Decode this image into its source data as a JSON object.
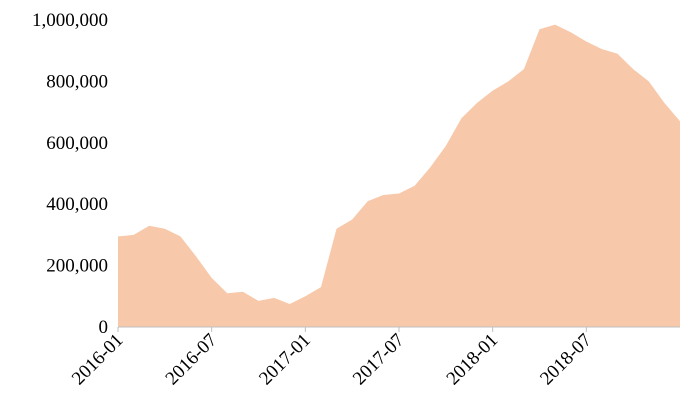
{
  "chart_data": {
    "type": "area",
    "x": [
      "2016-01",
      "2016-02",
      "2016-03",
      "2016-04",
      "2016-05",
      "2016-06",
      "2016-07",
      "2016-08",
      "2016-09",
      "2016-10",
      "2016-11",
      "2016-12",
      "2017-01",
      "2017-02",
      "2017-03",
      "2017-04",
      "2017-05",
      "2017-06",
      "2017-07",
      "2017-08",
      "2017-09",
      "2017-10",
      "2017-11",
      "2017-12",
      "2018-01",
      "2018-02",
      "2018-03",
      "2018-04",
      "2018-05",
      "2018-06",
      "2018-07",
      "2018-08",
      "2018-09",
      "2018-10",
      "2018-11",
      "2018-12",
      "2019-01"
    ],
    "series": [
      {
        "color": "#f7c9aa",
        "values": [
          295000,
          300000,
          330000,
          320000,
          295000,
          230000,
          160000,
          110000,
          115000,
          85000,
          95000,
          75000,
          100000,
          130000,
          320000,
          350000,
          410000,
          430000,
          435000,
          460000,
          520000,
          590000,
          680000,
          730000,
          770000,
          800000,
          840000,
          970000,
          985000,
          960000,
          930000,
          905000,
          890000,
          840000,
          800000,
          730000,
          670000
        ]
      }
    ],
    "xlim": [
      "2016-01",
      "2019-01"
    ],
    "xticks": [
      "2016-01",
      "2016-07",
      "2017-01",
      "2017-07",
      "2018-01",
      "2018-07"
    ],
    "ylim": [
      0,
      1000000
    ],
    "yticks": [
      {
        "value": 0,
        "label": "0"
      },
      {
        "value": 200000,
        "label": "200,000"
      },
      {
        "value": 400000,
        "label": "400,000"
      },
      {
        "value": 600000,
        "label": "600,000"
      },
      {
        "value": 800000,
        "label": "800,000"
      },
      {
        "value": 1000000,
        "label": "1,000,000"
      }
    ]
  }
}
